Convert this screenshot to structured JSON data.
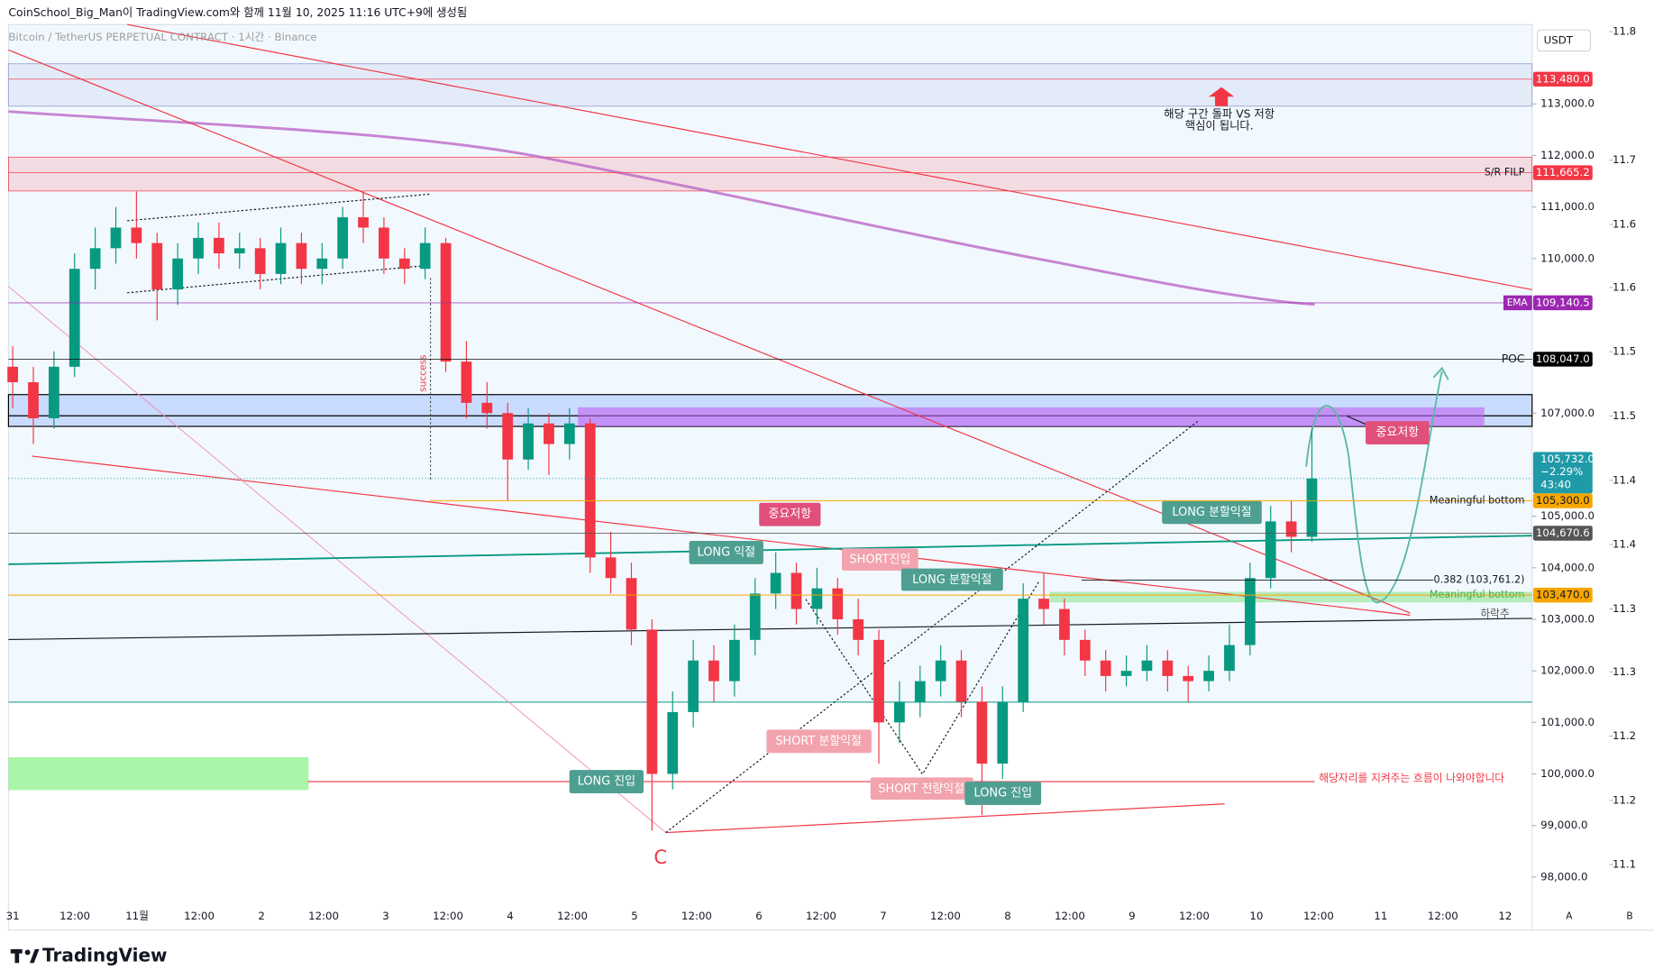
{
  "header": {
    "credit": "CoinSchool_Big_Man이 TradingView.com와 함께 11월 10, 2025 11:16 UTC+9에 생성됨",
    "symbol": "Bitcoin / TetherUS PERPETUAL CONTRACT · 1시간 · Binance",
    "currency": "USDT",
    "logo": "TradingView",
    "buttons": [
      "A",
      "B"
    ]
  },
  "annotations": [
    "해당 구간 돌파 VS 저항",
    "핵심이 됩니다.",
    "중요저항",
    "LONG 익절",
    "SHORT진입",
    "LONG 분할익절",
    "LONG 분할익절",
    "중요저항",
    "SHORT 분할익절",
    "SHORT 전량익절",
    "LONG 진입",
    "LONG 진입",
    "해당자리를 지켜주는 흐름이 나와야합니다",
    "C",
    "success"
  ],
  "chart_data": {
    "type": "candlestick",
    "up_color": "#089981",
    "down_color": "#f23645",
    "xticks": [
      "31",
      "12:00",
      "11월",
      "12:00",
      "2",
      "12:00",
      "3",
      "12:00",
      "4",
      "12:00",
      "5",
      "12:00",
      "6",
      "12:00",
      "7",
      "12:00",
      "8",
      "12:00",
      "9",
      "12:00",
      "10",
      "12:00",
      "11",
      "12:00",
      "12"
    ],
    "ylim": [
      96970,
      114540
    ],
    "yticks": [
      {
        "value": 113000,
        "label": "113,000.0"
      },
      {
        "value": 112000,
        "label": "112,000.0"
      },
      {
        "value": 111000,
        "label": "111,000.0"
      },
      {
        "value": 110000,
        "label": "110,000.0"
      },
      {
        "value": 107000,
        "label": "107,000.0"
      },
      {
        "value": 105000,
        "label": "105,000.0"
      },
      {
        "value": 104000,
        "label": "104,000.0"
      },
      {
        "value": 103000,
        "label": "103,000.0"
      },
      {
        "value": 102000,
        "label": "102,000.0"
      },
      {
        "value": 101000,
        "label": "101,000.0"
      },
      {
        "value": 100000,
        "label": "100,000.0"
      },
      {
        "value": 99000,
        "label": "99,000.0"
      },
      {
        "value": 98000,
        "label": "98,000.0"
      }
    ],
    "y2lim": [
      11.045,
      11.806
    ],
    "y2ticks": [
      {
        "value": 11.8,
        "label": "11.8"
      },
      {
        "value": 11.692,
        "label": "11.7"
      },
      {
        "value": 11.638,
        "label": "11.6"
      },
      {
        "value": 11.585,
        "label": "11.6"
      },
      {
        "value": 11.531,
        "label": "11.5"
      },
      {
        "value": 11.477,
        "label": "11.5"
      },
      {
        "value": 11.423,
        "label": "11.4"
      },
      {
        "value": 11.369,
        "label": "11.4"
      },
      {
        "value": 11.315,
        "label": "11.3"
      },
      {
        "value": 11.262,
        "label": "11.3"
      },
      {
        "value": 11.208,
        "label": "11.2"
      },
      {
        "value": 11.154,
        "label": "11.2"
      },
      {
        "value": 11.1,
        "label": "11.1"
      }
    ],
    "candles": [
      [
        107900,
        108300,
        107100,
        107600
      ],
      [
        107600,
        107900,
        106400,
        106900
      ],
      [
        106900,
        108200,
        106700,
        107900
      ],
      [
        107900,
        110100,
        107700,
        109800
      ],
      [
        109800,
        110600,
        109400,
        110200
      ],
      [
        110200,
        111000,
        109900,
        110600
      ],
      [
        110600,
        111300,
        110000,
        110300
      ],
      [
        110300,
        110500,
        108800,
        109400
      ],
      [
        109400,
        110300,
        109100,
        110000
      ],
      [
        110000,
        110700,
        109700,
        110400
      ],
      [
        110400,
        110700,
        109800,
        110100
      ],
      [
        110100,
        110500,
        109800,
        110200
      ],
      [
        110200,
        110400,
        109400,
        109700
      ],
      [
        109700,
        110600,
        109500,
        110300
      ],
      [
        110300,
        110500,
        109500,
        109800
      ],
      [
        109800,
        110300,
        109500,
        110000
      ],
      [
        110000,
        111000,
        109800,
        110800
      ],
      [
        110800,
        111300,
        110300,
        110600
      ],
      [
        110600,
        110800,
        109700,
        110000
      ],
      [
        110000,
        110200,
        109500,
        109800
      ],
      [
        109800,
        110600,
        109600,
        110300
      ],
      [
        110300,
        110400,
        107800,
        108000
      ],
      [
        108000,
        108400,
        106900,
        107200
      ],
      [
        107200,
        107600,
        106700,
        107000
      ],
      [
        107000,
        107200,
        105300,
        106100
      ],
      [
        106100,
        107100,
        105900,
        106800
      ],
      [
        106800,
        107000,
        105800,
        106400
      ],
      [
        106400,
        107100,
        106100,
        106800
      ],
      [
        106800,
        106900,
        103900,
        104200
      ],
      [
        104200,
        104700,
        103500,
        103800
      ],
      [
        103800,
        104100,
        102500,
        102800
      ],
      [
        102800,
        103000,
        98900,
        100000
      ],
      [
        100000,
        101600,
        99700,
        101200
      ],
      [
        101200,
        102600,
        100900,
        102200
      ],
      [
        102200,
        102500,
        101400,
        101800
      ],
      [
        101800,
        102900,
        101500,
        102600
      ],
      [
        102600,
        103800,
        102300,
        103500
      ],
      [
        103500,
        104300,
        103200,
        103900
      ],
      [
        103900,
        104100,
        102900,
        103200
      ],
      [
        103200,
        104000,
        102900,
        103600
      ],
      [
        103600,
        103800,
        102700,
        103000
      ],
      [
        103000,
        103400,
        102300,
        102600
      ],
      [
        102600,
        102800,
        100200,
        101000
      ],
      [
        101000,
        101800,
        100600,
        101400
      ],
      [
        101400,
        102100,
        101100,
        101800
      ],
      [
        101800,
        102500,
        101500,
        102200
      ],
      [
        102200,
        102400,
        101100,
        101400
      ],
      [
        101400,
        101700,
        99200,
        100200
      ],
      [
        100200,
        101700,
        99900,
        101400
      ],
      [
        101400,
        103700,
        101200,
        103400
      ],
      [
        103400,
        103900,
        102900,
        103200
      ],
      [
        103200,
        103400,
        102300,
        102600
      ],
      [
        102600,
        102800,
        101900,
        102200
      ],
      [
        102200,
        102400,
        101600,
        101900
      ],
      [
        101900,
        102300,
        101700,
        102000
      ],
      [
        102000,
        102500,
        101800,
        102200
      ],
      [
        102200,
        102400,
        101600,
        101900
      ],
      [
        101900,
        102100,
        101400,
        101800
      ],
      [
        101800,
        102300,
        101600,
        102000
      ],
      [
        102000,
        102900,
        101800,
        102500
      ],
      [
        102500,
        104100,
        102300,
        103800
      ],
      [
        103800,
        105200,
        103600,
        104900
      ],
      [
        104900,
        105300,
        104300,
        104600
      ],
      [
        104600,
        106700,
        104500,
        105732
      ]
    ],
    "price_tags": [
      {
        "value": 113480,
        "label": "113,480.0",
        "color": "#f23645",
        "text_color": "#ffffff"
      },
      {
        "value": 111665.2,
        "label": "111,665.2",
        "color": "#f23645",
        "text_color": "#ffffff",
        "note": "S/R FILP"
      },
      {
        "value": 109140.5,
        "label": "109,140.5",
        "color": "#9c27b0",
        "text_color": "#ffffff",
        "note": "EMA",
        "note_boxed": true
      },
      {
        "value": 108047,
        "label": "108,047.0",
        "color": "#000000",
        "text_color": "#ffffff",
        "note": "POC"
      },
      {
        "value": 105300,
        "label": "105,300.0",
        "color": "#f7a600",
        "text_color": "#131722",
        "note": "Meaningful bottom"
      },
      {
        "value": 104670.6,
        "label": "104,670.6",
        "color": "#555555",
        "text_color": "#ffffff"
      },
      {
        "value": 103470,
        "label": "103,470.0",
        "color": "#f7a600",
        "text_color": "#131722",
        "note": "Meaningful bottom",
        "note_color": "#4caf50"
      }
    ],
    "current": {
      "value": 105732,
      "label": "105,732.0",
      "change": "−2.29%",
      "countdown": "43:40",
      "color": "#1f9aa8"
    },
    "levels": [
      {
        "value": 103761.2,
        "label": "0.382 (103,761.2)"
      }
    ],
    "trend_label": "하락추"
  }
}
